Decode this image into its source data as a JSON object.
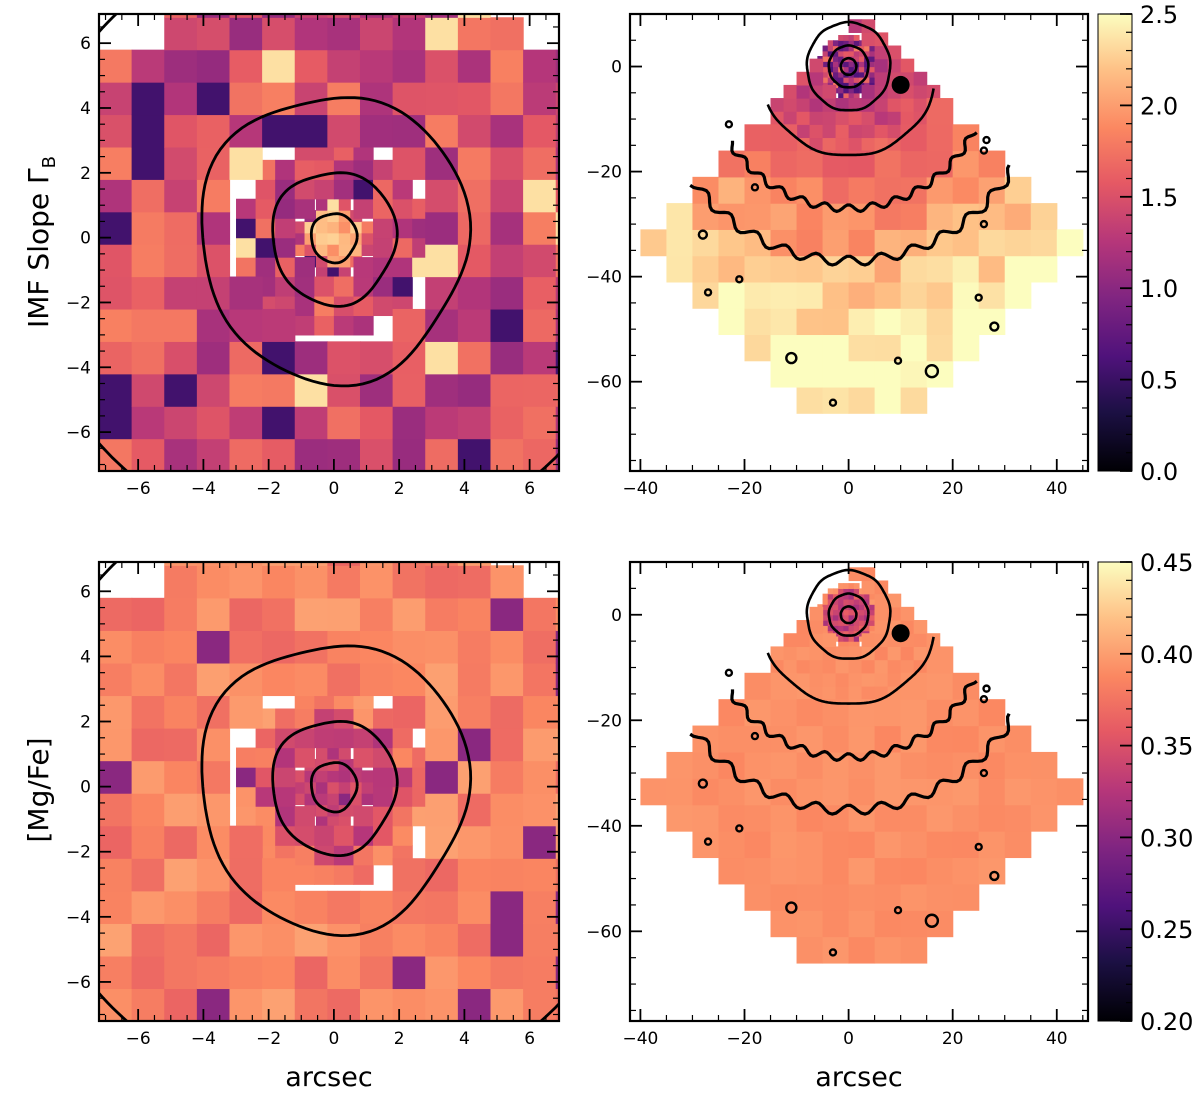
{
  "colors": {
    "colormap": "magma",
    "contour": "#000000",
    "background": "#ffffff"
  },
  "chart_data": [
    {
      "type": "heatmap",
      "row": "top",
      "panel": "central",
      "title": "",
      "ylabel": "IMF Slope Γ",
      "ylabel_sub": "B",
      "xlabel": "",
      "xlim": [
        -7.2,
        6.9
      ],
      "ylim": [
        -7.2,
        6.9
      ],
      "xticks": [
        -6,
        -4,
        -2,
        0,
        2,
        4,
        6
      ],
      "yticks": [
        -6,
        -4,
        -2,
        0,
        2,
        4,
        6
      ],
      "xtick_labels": [
        "−6",
        "−4",
        "−2",
        "0",
        "2",
        "4",
        "6"
      ],
      "ytick_labels": [
        "−6",
        "−4",
        "−2",
        "0",
        "2",
        "4",
        "6"
      ],
      "color_range": [
        0.0,
        2.5
      ],
      "contour_radii": [
        0.7,
        1.9,
        4.1
      ],
      "map_summary": "Voronoi-binned map; values mostly 1.0–1.9 with scattered bins near 0.5 and some bright bins near 2.4"
    },
    {
      "type": "heatmap",
      "row": "top",
      "panel": "wide",
      "title": "",
      "xlabel": "",
      "xlim": [
        -42,
        46
      ],
      "ylim": [
        -77,
        10
      ],
      "xticks": [
        -40,
        -20,
        0,
        20,
        40
      ],
      "yticks": [
        -60,
        -40,
        -20,
        0
      ],
      "xtick_labels": [
        "−40",
        "−20",
        "0",
        "20",
        "40"
      ],
      "ytick_labels": [
        "−60",
        "−40",
        "−20",
        "0"
      ],
      "color_range": [
        0.0,
        2.5
      ],
      "colorbar_ticks": [
        0.0,
        0.5,
        1.0,
        1.5,
        2.0,
        2.5
      ],
      "colorbar_tick_labels": [
        "0.0",
        "0.5",
        "1.0",
        "1.5",
        "2.0",
        "2.5"
      ],
      "contour_radii": [
        1.5,
        3.8,
        8,
        17,
        27,
        37
      ],
      "map_summary": "Fan-shaped mosaic; IMF slope increases outward from about 1.2 near centre to about 2.4 at the outer edge"
    },
    {
      "type": "heatmap",
      "row": "bottom",
      "panel": "central",
      "title": "",
      "ylabel": "[Mg/Fe]",
      "xlabel": "arcsec",
      "xlim": [
        -7.2,
        6.9
      ],
      "ylim": [
        -7.2,
        6.9
      ],
      "xticks": [
        -6,
        -4,
        -2,
        0,
        2,
        4,
        6
      ],
      "yticks": [
        -6,
        -4,
        -2,
        0,
        2,
        4,
        6
      ],
      "xtick_labels": [
        "−6",
        "−4",
        "−2",
        "0",
        "2",
        "4",
        "6"
      ],
      "ytick_labels": [
        "−6",
        "−4",
        "−2",
        "0",
        "2",
        "4",
        "6"
      ],
      "color_range": [
        0.2,
        0.45
      ],
      "contour_radii": [
        0.7,
        1.9,
        4.1
      ],
      "map_summary": "Values near 0.38–0.40 in the outer region and lower (~0.33) in the central 2 arcsec"
    },
    {
      "type": "heatmap",
      "row": "bottom",
      "panel": "wide",
      "title": "",
      "xlabel": "arcsec",
      "xlim": [
        -42,
        46
      ],
      "ylim": [
        -77,
        10
      ],
      "xticks": [
        -40,
        -20,
        0,
        20,
        40
      ],
      "yticks": [
        -60,
        -40,
        -20,
        0
      ],
      "xtick_labels": [
        "−40",
        "−20",
        "0",
        "20",
        "40"
      ],
      "ytick_labels": [
        "−60",
        "−40",
        "−20",
        "0"
      ],
      "color_range": [
        0.2,
        0.45
      ],
      "colorbar_ticks": [
        0.2,
        0.25,
        0.3,
        0.35,
        0.4,
        0.45
      ],
      "colorbar_tick_labels": [
        "0.20",
        "0.25",
        "0.30",
        "0.35",
        "0.40",
        "0.45"
      ],
      "contour_radii": [
        1.5,
        3.8,
        8,
        17,
        27,
        37
      ],
      "map_summary": "Nearly uniform [Mg/Fe] of about 0.39 across the field, lower near the centre"
    }
  ]
}
